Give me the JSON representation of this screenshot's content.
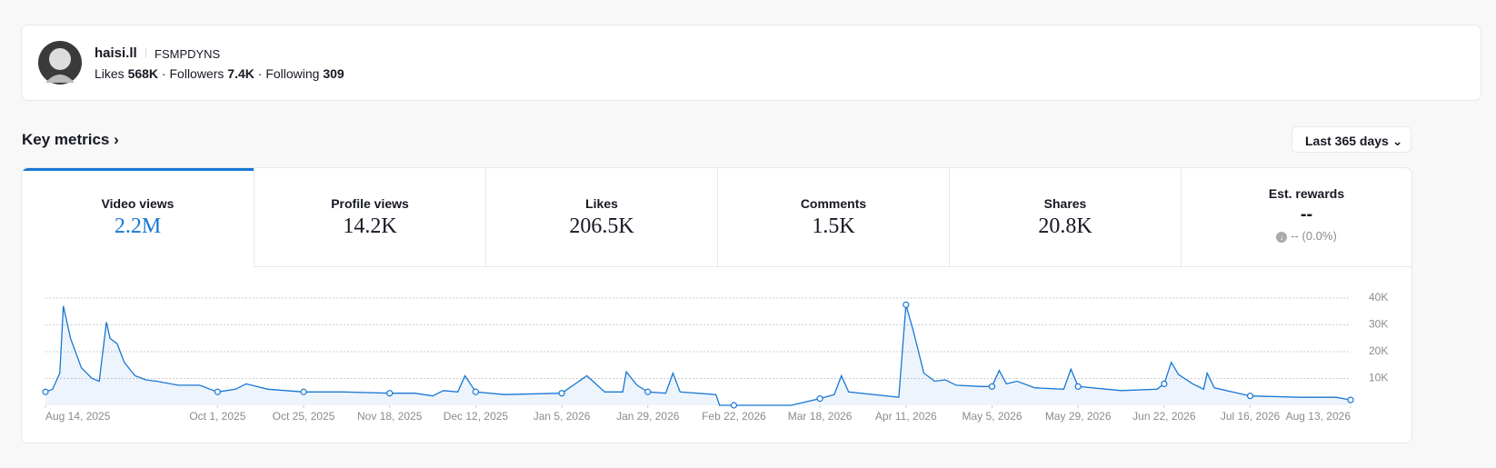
{
  "profile": {
    "name": "haisi.ll",
    "handle": "FSMPDYNS",
    "stats": [
      {
        "label": "Likes",
        "value": "568K"
      },
      {
        "label": "Followers",
        "value": "7.4K"
      },
      {
        "label": "Following",
        "value": "309"
      }
    ]
  },
  "section_title": "Key metrics",
  "range_select": "Last 365 days",
  "metrics": [
    {
      "label": "Video views",
      "value": "2.2M"
    },
    {
      "label": "Profile views",
      "value": "14.2K"
    },
    {
      "label": "Likes",
      "value": "206.5K"
    },
    {
      "label": "Comments",
      "value": "1.5K"
    },
    {
      "label": "Shares",
      "value": "20.8K"
    },
    {
      "label": "Est. rewards",
      "value": "--",
      "change": "-- (0.0%)"
    }
  ],
  "chart": {
    "type": "line",
    "color": "#1877d4",
    "grid": true,
    "x": [
      "2025-08-14",
      "2025-08-16",
      "2025-08-18",
      "2025-08-19",
      "2025-08-21",
      "2025-08-24",
      "2025-08-27",
      "2025-08-29",
      "2025-08-31",
      "2025-09-01",
      "2025-09-03",
      "2025-09-05",
      "2025-09-08",
      "2025-09-11",
      "2025-09-14",
      "2025-09-20",
      "2025-09-26",
      "2025-10-01",
      "2025-10-06",
      "2025-10-09",
      "2025-10-15",
      "2025-10-25",
      "2025-11-05",
      "2025-11-18",
      "2025-11-25",
      "2025-11-30",
      "2025-12-03",
      "2025-12-07",
      "2025-12-09",
      "2025-12-12",
      "2025-12-20",
      "2026-01-05",
      "2026-01-12",
      "2026-01-17",
      "2026-01-22",
      "2026-01-23",
      "2026-01-26",
      "2026-01-29",
      "2026-02-03",
      "2026-02-05",
      "2026-02-07",
      "2026-02-17",
      "2026-02-18",
      "2026-02-22",
      "2026-03-10",
      "2026-03-18",
      "2026-03-22",
      "2026-03-24",
      "2026-03-26",
      "2026-04-09",
      "2026-04-11",
      "2026-04-13",
      "2026-04-16",
      "2026-04-19",
      "2026-04-22",
      "2026-04-25",
      "2026-05-02",
      "2026-05-05",
      "2026-05-07",
      "2026-05-09",
      "2026-05-12",
      "2026-05-17",
      "2026-05-25",
      "2026-05-27",
      "2026-05-29",
      "2026-06-10",
      "2026-06-20",
      "2026-06-22",
      "2026-06-24",
      "2026-06-26",
      "2026-06-30",
      "2026-07-03",
      "2026-07-04",
      "2026-07-06",
      "2026-07-16",
      "2026-07-30",
      "2026-08-09",
      "2026-08-13"
    ],
    "values": [
      5000,
      6000,
      12000,
      37000,
      25000,
      14000,
      10000,
      9000,
      31000,
      25000,
      23000,
      16000,
      11000,
      9500,
      9000,
      7500,
      7500,
      5000,
      6000,
      8000,
      6000,
      5000,
      5000,
      4500,
      4500,
      3500,
      5500,
      5000,
      11000,
      5000,
      4000,
      4500,
      11000,
      5000,
      5000,
      12500,
      7500,
      5000,
      4500,
      12000,
      5000,
      4000,
      0,
      0,
      0,
      2500,
      4000,
      11000,
      5000,
      3000,
      37500,
      28000,
      12000,
      9000,
      9500,
      7500,
      7000,
      7000,
      13000,
      8000,
      9000,
      6500,
      6000,
      13500,
      7000,
      5500,
      6000,
      8000,
      16000,
      11500,
      8000,
      6000,
      12000,
      6500,
      3500,
      3000,
      3000,
      2000
    ],
    "xlim": [
      "2025-08-14",
      "2026-08-13"
    ],
    "xticks": [
      {
        "value": "2025-08-14",
        "label": "Aug 14, 2025"
      },
      {
        "value": "2025-10-01",
        "label": "Oct 1, 2025"
      },
      {
        "value": "2025-10-25",
        "label": "Oct 25, 2025"
      },
      {
        "value": "2025-11-18",
        "label": "Nov 18, 2025"
      },
      {
        "value": "2025-12-12",
        "label": "Dec 12, 2025"
      },
      {
        "value": "2026-01-05",
        "label": "Jan 5, 2026"
      },
      {
        "value": "2026-01-29",
        "label": "Jan 29, 2026"
      },
      {
        "value": "2026-02-22",
        "label": "Feb 22, 2026"
      },
      {
        "value": "2026-03-18",
        "label": "Mar 18, 2026"
      },
      {
        "value": "2026-04-11",
        "label": "Apr 11, 2026"
      },
      {
        "value": "2026-05-05",
        "label": "May 5, 2026"
      },
      {
        "value": "2026-05-29",
        "label": "May 29, 2026"
      },
      {
        "value": "2026-06-22",
        "label": "Jun 22, 2026"
      },
      {
        "value": "2026-07-16",
        "label": "Jul 16, 2026"
      },
      {
        "value": "2026-08-13",
        "label": "Aug 13, 2026"
      }
    ],
    "ylim": [
      0,
      40000
    ],
    "yticks": [
      {
        "value": 10000,
        "label": "10K"
      },
      {
        "value": 20000,
        "label": "20K"
      },
      {
        "value": 30000,
        "label": "30K"
      },
      {
        "value": 40000,
        "label": "40K"
      }
    ]
  }
}
